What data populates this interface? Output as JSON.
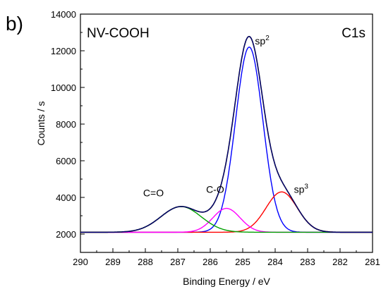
{
  "panel_label": "b)",
  "chart_data": {
    "type": "line",
    "title": "",
    "sample_label": "NV-COOH",
    "region_label": "C1s",
    "xlabel": "Binding Energy / eV",
    "ylabel": "Counts / s",
    "xlim": [
      290,
      281
    ],
    "ylim": [
      1000,
      14000
    ],
    "x_reversed": true,
    "xticks": [
      290,
      289,
      288,
      287,
      286,
      285,
      284,
      283,
      282,
      281
    ],
    "yticks": [
      2000,
      4000,
      6000,
      8000,
      10000,
      12000,
      14000
    ],
    "grid": false,
    "baseline": 2100,
    "series": [
      {
        "name": "sp2",
        "color": "#0000ff",
        "center": 284.8,
        "amplitude": 10100,
        "sigma": 0.42
      },
      {
        "name": "sp3",
        "color": "#ff0000",
        "center": 283.8,
        "amplitude": 2200,
        "sigma": 0.48
      },
      {
        "name": "C-O",
        "color": "#ff00ff",
        "center": 285.5,
        "amplitude": 1300,
        "sigma": 0.42
      },
      {
        "name": "C=O",
        "color": "#00a000",
        "center": 286.9,
        "amplitude": 1400,
        "sigma": 0.62
      }
    ],
    "envelope_color": "#000080",
    "annotations": [
      {
        "text": "sp",
        "superscript": "2",
        "x": 284.4,
        "y": 12350
      },
      {
        "text": "sp",
        "superscript": "3",
        "x": 283.2,
        "y": 4250
      },
      {
        "text": "C-O",
        "x": 285.85,
        "y": 4250
      },
      {
        "text": "C=O",
        "x": 287.75,
        "y": 4050
      }
    ]
  }
}
